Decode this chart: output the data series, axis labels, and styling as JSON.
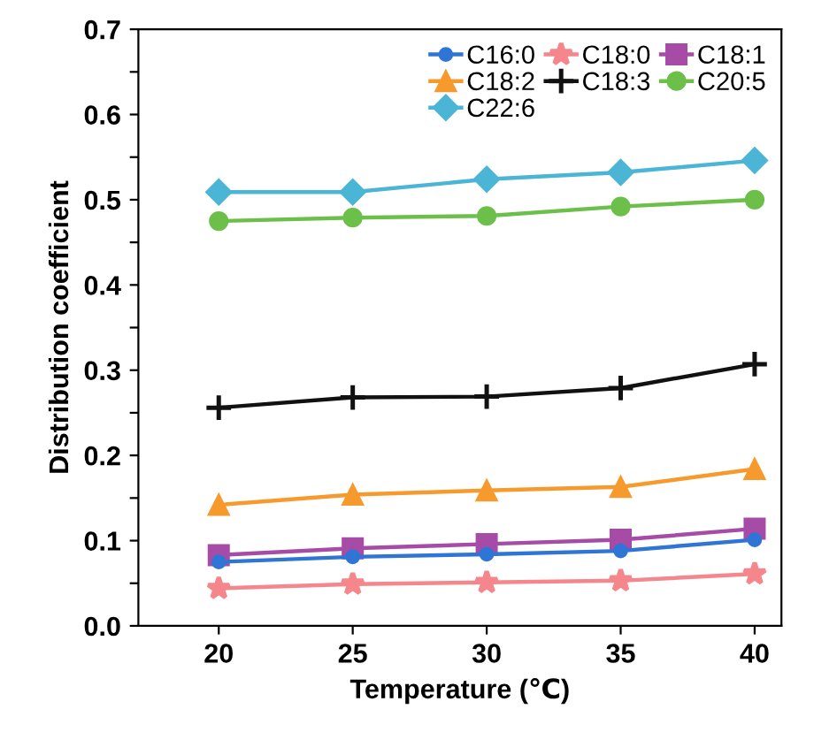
{
  "chart_data": {
    "type": "line",
    "xlabel": "Temperature (℃)",
    "ylabel": "Distribution coefficient",
    "x": [
      20,
      25,
      30,
      35,
      40
    ],
    "xlim": [
      17,
      41
    ],
    "xticks": [
      20,
      25,
      30,
      35,
      40
    ],
    "ylim": [
      0,
      0.7
    ],
    "yticks": [
      "0.0",
      {
        "value": 0.05,
        "label": null
      },
      {
        "value": 0.1,
        "label": "0.1"
      },
      {
        "value": 0.15,
        "label": null
      },
      {
        "value": 0.2,
        "label": "0.2"
      },
      {
        "value": 0.25,
        "label": null
      },
      {
        "value": 0.3,
        "label": "0.3"
      },
      {
        "value": 0.35,
        "label": null
      },
      {
        "value": 0.4,
        "label": "0.4"
      },
      {
        "value": 0.45,
        "label": null
      },
      {
        "value": 0.5,
        "label": "0.5"
      },
      {
        "value": 0.55,
        "label": null
      },
      {
        "value": 0.6,
        "label": "0.6"
      },
      {
        "value": 0.65,
        "label": null
      },
      {
        "value": 0.7,
        "label": "0.7"
      }
    ],
    "grid": false,
    "legend": "top right",
    "line_style": "solid",
    "series": [
      {
        "name": "C16:0",
        "color": "#2e75d6",
        "marker": "circle",
        "values": [
          0.075,
          0.081,
          0.084,
          0.088,
          0.101
        ]
      },
      {
        "name": "C18:0",
        "color": "#f4868c",
        "marker": "star",
        "values": [
          0.044,
          0.049,
          0.051,
          0.053,
          0.061
        ]
      },
      {
        "name": "C18:1",
        "color": "#a64ca6",
        "marker": "square",
        "values": [
          0.083,
          0.091,
          0.096,
          0.101,
          0.114
        ]
      },
      {
        "name": "C18:2",
        "color": "#f79a2e",
        "marker": "triangle",
        "values": [
          0.142,
          0.154,
          0.159,
          0.163,
          0.184
        ]
      },
      {
        "name": "C18:3",
        "color": "#111111",
        "marker": "cross",
        "values": [
          0.256,
          0.268,
          0.269,
          0.279,
          0.307
        ]
      },
      {
        "name": "C20:5",
        "color": "#6cc04a",
        "marker": "circle",
        "values": [
          0.475,
          0.479,
          0.481,
          0.492,
          0.5
        ]
      },
      {
        "name": "C22:6",
        "color": "#4bb5d6",
        "marker": "diamond",
        "values": [
          0.509,
          0.509,
          0.524,
          0.532,
          0.546
        ]
      }
    ]
  }
}
